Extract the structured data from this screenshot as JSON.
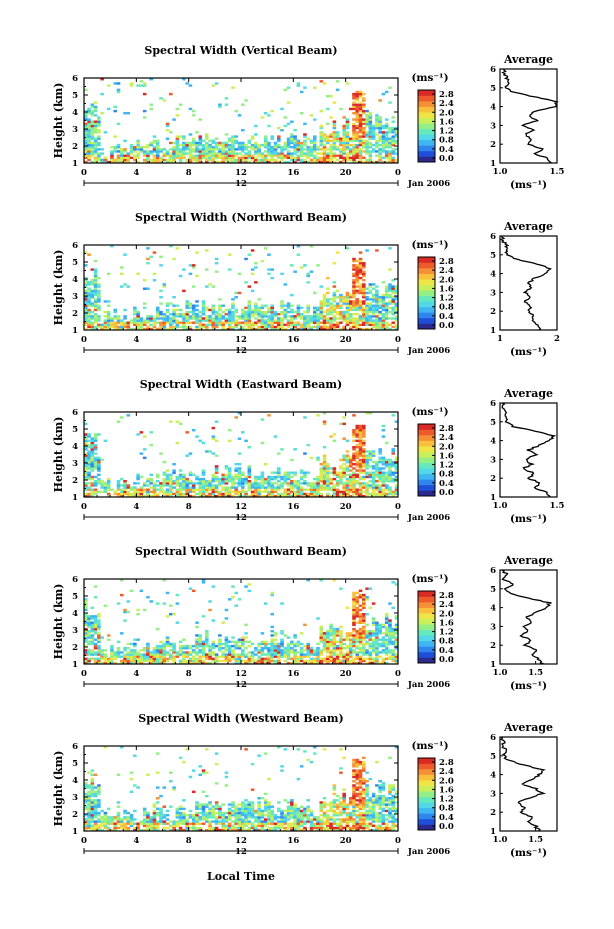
{
  "figure": {
    "x_label": "Local Time",
    "date_label": "Jan 2006",
    "y_label": "Height (km)",
    "unit_label": "(ms⁻¹)",
    "avg_title": "Average",
    "avg_unit": "(ms⁻¹)"
  },
  "colorbar": {
    "tick_labels": [
      "0.0",
      "0.4",
      "0.8",
      "1.2",
      "1.6",
      "2.0",
      "2.4",
      "2.8"
    ],
    "colors": [
      "#2b2b8f",
      "#1f4fd8",
      "#2f86ee",
      "#3fb5f2",
      "#52d8e6",
      "#66e8bd",
      "#94f085",
      "#c9f05a",
      "#f0e546",
      "#f8c03c",
      "#f59034",
      "#ee5a2c",
      "#d92a26"
    ]
  },
  "chart_data": [
    {
      "type": "heatmap",
      "title": "Spectral Width (Vertical Beam)",
      "xlabel": "Local Time",
      "ylabel": "Height (km)",
      "x_ticks": [
        "0",
        "4",
        "8",
        "12",
        "16",
        "20",
        "0"
      ],
      "x_mid_label": "12",
      "y_ticks": [
        "1",
        "2",
        "3",
        "4",
        "5",
        "6"
      ],
      "ylim": [
        1,
        6
      ],
      "xlim": [
        0,
        24
      ],
      "value_range": [
        0,
        2.8
      ],
      "average": {
        "title": "Average",
        "xlabel": "(ms⁻¹)",
        "x_ticks": [
          "1.0",
          "1.5"
        ],
        "xlim": [
          1.0,
          1.5
        ],
        "heights": [
          1.0,
          1.25,
          1.5,
          1.75,
          2.0,
          2.25,
          2.5,
          2.75,
          3.0,
          3.25,
          3.5,
          3.75,
          4.0,
          4.25,
          4.5,
          4.75,
          5.0,
          5.25,
          5.5,
          5.75,
          6.0
        ],
        "values": [
          1.45,
          1.42,
          1.3,
          1.38,
          1.25,
          1.28,
          1.22,
          1.3,
          1.2,
          1.32,
          1.25,
          1.3,
          1.48,
          1.5,
          1.32,
          1.12,
          1.05,
          1.08,
          1.06,
          1.04,
          1.03
        ]
      }
    },
    {
      "type": "heatmap",
      "title": "Spectral Width (Northward Beam)",
      "xlabel": "Local Time",
      "ylabel": "Height (km)",
      "x_ticks": [
        "0",
        "4",
        "8",
        "12",
        "16",
        "20",
        "0"
      ],
      "x_mid_label": "12",
      "y_ticks": [
        "1",
        "2",
        "3",
        "4",
        "5",
        "6"
      ],
      "ylim": [
        1,
        6
      ],
      "xlim": [
        0,
        24
      ],
      "value_range": [
        0,
        2.8
      ],
      "average": {
        "title": "Average",
        "xlabel": "(ms⁻¹)",
        "x_ticks": [
          "1",
          "2"
        ],
        "xlim": [
          1,
          2
        ],
        "heights": [
          1.0,
          1.25,
          1.5,
          1.75,
          2.0,
          2.25,
          2.5,
          2.75,
          3.0,
          3.25,
          3.5,
          3.75,
          4.0,
          4.25,
          4.5,
          4.75,
          5.0,
          5.25,
          5.5,
          5.75,
          6.0
        ],
        "values": [
          1.7,
          1.65,
          1.55,
          1.6,
          1.5,
          1.55,
          1.45,
          1.5,
          1.45,
          1.55,
          1.5,
          1.6,
          1.8,
          1.9,
          1.65,
          1.3,
          1.15,
          1.1,
          1.12,
          1.05,
          1.03
        ]
      }
    },
    {
      "type": "heatmap",
      "title": "Spectral Width (Eastward Beam)",
      "xlabel": "Local Time",
      "ylabel": "Height (km)",
      "x_ticks": [
        "0",
        "4",
        "8",
        "12",
        "16",
        "20",
        "0"
      ],
      "x_mid_label": "12",
      "y_ticks": [
        "1",
        "2",
        "3",
        "4",
        "5",
        "6"
      ],
      "ylim": [
        1,
        6
      ],
      "xlim": [
        0,
        24
      ],
      "value_range": [
        0,
        2.8
      ],
      "average": {
        "title": "Average",
        "xlabel": "(ms⁻¹)",
        "x_ticks": [
          "1.0",
          "1.5"
        ],
        "xlim": [
          1.0,
          1.5
        ],
        "heights": [
          1.0,
          1.25,
          1.5,
          1.75,
          2.0,
          2.25,
          2.5,
          2.75,
          3.0,
          3.25,
          3.5,
          3.75,
          4.0,
          4.25,
          4.5,
          4.75,
          5.0,
          5.25,
          5.5,
          5.75,
          6.0
        ],
        "values": [
          1.45,
          1.4,
          1.3,
          1.35,
          1.25,
          1.3,
          1.2,
          1.28,
          1.22,
          1.32,
          1.25,
          1.35,
          1.42,
          1.48,
          1.3,
          1.12,
          1.06,
          1.04,
          1.05,
          1.03,
          1.02
        ]
      }
    },
    {
      "type": "heatmap",
      "title": "Spectral Width (Southward Beam)",
      "xlabel": "Local Time",
      "ylabel": "Height (km)",
      "x_ticks": [
        "0",
        "4",
        "8",
        "12",
        "16",
        "20",
        "0"
      ],
      "x_mid_label": "12",
      "y_ticks": [
        "1",
        "2",
        "3",
        "4",
        "5",
        "6"
      ],
      "ylim": [
        1,
        6
      ],
      "xlim": [
        0,
        24
      ],
      "value_range": [
        0,
        2.8
      ],
      "average": {
        "title": "Average",
        "xlabel": "(ms⁻¹)",
        "x_ticks": [
          "1.0",
          "1.5"
        ],
        "xlim": [
          1.0,
          1.8
        ],
        "heights": [
          1.0,
          1.25,
          1.5,
          1.75,
          2.0,
          2.25,
          2.5,
          2.75,
          3.0,
          3.25,
          3.5,
          3.75,
          4.0,
          4.25,
          4.5,
          4.75,
          5.0,
          5.25,
          5.5,
          5.75,
          6.0
        ],
        "values": [
          1.6,
          1.55,
          1.45,
          1.5,
          1.35,
          1.45,
          1.3,
          1.4,
          1.35,
          1.45,
          1.38,
          1.5,
          1.65,
          1.7,
          1.4,
          1.15,
          1.08,
          1.2,
          1.05,
          1.1,
          1.03
        ]
      }
    },
    {
      "type": "heatmap",
      "title": "Spectral Width (Westward Beam)",
      "xlabel": "Local Time",
      "ylabel": "Height (km)",
      "x_ticks": [
        "0",
        "4",
        "8",
        "12",
        "16",
        "20",
        "0"
      ],
      "x_mid_label": "12",
      "y_ticks": [
        "1",
        "2",
        "3",
        "4",
        "5",
        "6"
      ],
      "ylim": [
        1,
        6
      ],
      "xlim": [
        0,
        24
      ],
      "value_range": [
        0,
        2.8
      ],
      "average": {
        "title": "Average",
        "xlabel": "(ms⁻¹)",
        "x_ticks": [
          "1.0",
          "1.5"
        ],
        "xlim": [
          1.0,
          1.8
        ],
        "heights": [
          1.0,
          1.25,
          1.5,
          1.75,
          2.0,
          2.25,
          2.5,
          2.75,
          3.0,
          3.25,
          3.5,
          3.75,
          4.0,
          4.25,
          4.5,
          4.75,
          5.0,
          5.25,
          5.5,
          5.75,
          6.0
        ],
        "values": [
          1.55,
          1.5,
          1.4,
          1.45,
          1.3,
          1.35,
          1.25,
          1.4,
          1.6,
          1.5,
          1.3,
          1.45,
          1.55,
          1.6,
          1.35,
          1.12,
          1.05,
          1.1,
          1.04,
          1.06,
          1.02
        ]
      }
    }
  ]
}
